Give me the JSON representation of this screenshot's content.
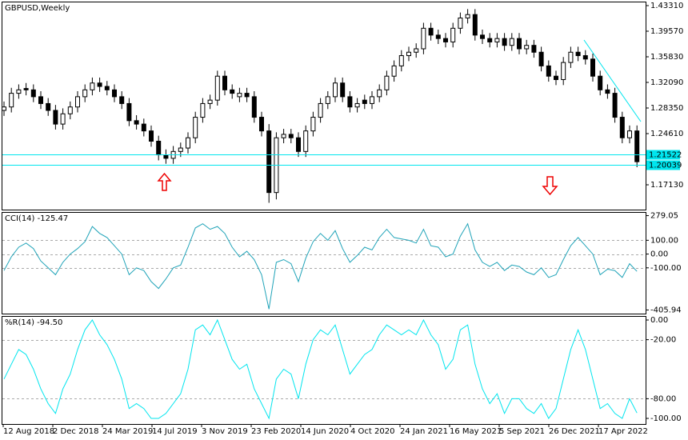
{
  "chart_data": [
    {
      "type": "candlestick",
      "title": "GBPUSD,Weekly",
      "color": "#000000",
      "candles": [
        [
          1.28,
          1.293,
          1.272,
          1.285
        ],
        [
          1.285,
          1.313,
          1.277,
          1.305
        ],
        [
          1.305,
          1.318,
          1.297,
          1.31
        ],
        [
          1.312,
          1.32,
          1.302,
          1.31
        ],
        [
          1.31,
          1.318,
          1.292,
          1.3
        ],
        [
          1.3,
          1.308,
          1.282,
          1.29
        ],
        [
          1.29,
          1.298,
          1.272,
          1.28
        ],
        [
          1.28,
          1.288,
          1.252,
          1.26
        ],
        [
          1.26,
          1.283,
          1.252,
          1.275
        ],
        [
          1.275,
          1.293,
          1.267,
          1.285
        ],
        [
          1.285,
          1.308,
          1.277,
          1.3
        ],
        [
          1.3,
          1.318,
          1.292,
          1.31
        ],
        [
          1.31,
          1.328,
          1.302,
          1.32
        ],
        [
          1.32,
          1.328,
          1.307,
          1.315
        ],
        [
          1.315,
          1.323,
          1.302,
          1.31
        ],
        [
          1.31,
          1.318,
          1.292,
          1.3
        ],
        [
          1.3,
          1.308,
          1.282,
          1.29
        ],
        [
          1.29,
          1.298,
          1.257,
          1.265
        ],
        [
          1.265,
          1.273,
          1.252,
          1.26
        ],
        [
          1.26,
          1.268,
          1.242,
          1.25
        ],
        [
          1.25,
          1.258,
          1.227,
          1.235
        ],
        [
          1.235,
          1.243,
          1.207,
          1.215
        ],
        [
          1.215,
          1.223,
          1.202,
          1.21
        ],
        [
          1.21,
          1.228,
          1.202,
          1.22
        ],
        [
          1.22,
          1.233,
          1.212,
          1.225
        ],
        [
          1.225,
          1.248,
          1.217,
          1.24
        ],
        [
          1.24,
          1.278,
          1.232,
          1.27
        ],
        [
          1.27,
          1.298,
          1.262,
          1.29
        ],
        [
          1.29,
          1.303,
          1.282,
          1.295
        ],
        [
          1.295,
          1.338,
          1.287,
          1.33
        ],
        [
          1.33,
          1.338,
          1.302,
          1.31
        ],
        [
          1.31,
          1.318,
          1.297,
          1.305
        ],
        [
          1.3,
          1.313,
          1.292,
          1.305
        ],
        [
          1.305,
          1.313,
          1.292,
          1.3
        ],
        [
          1.3,
          1.308,
          1.262,
          1.27
        ],
        [
          1.27,
          1.278,
          1.242,
          1.25
        ],
        [
          1.25,
          1.26,
          1.145,
          1.16
        ],
        [
          1.16,
          1.248,
          1.15,
          1.24
        ],
        [
          1.24,
          1.253,
          1.232,
          1.245
        ],
        [
          1.245,
          1.253,
          1.232,
          1.24
        ],
        [
          1.24,
          1.248,
          1.212,
          1.22
        ],
        [
          1.22,
          1.258,
          1.212,
          1.25
        ],
        [
          1.25,
          1.278,
          1.242,
          1.27
        ],
        [
          1.27,
          1.298,
          1.262,
          1.29
        ],
        [
          1.29,
          1.308,
          1.282,
          1.3
        ],
        [
          1.3,
          1.328,
          1.292,
          1.32
        ],
        [
          1.32,
          1.328,
          1.292,
          1.3
        ],
        [
          1.3,
          1.308,
          1.277,
          1.285
        ],
        [
          1.285,
          1.298,
          1.277,
          1.29
        ],
        [
          1.295,
          1.303,
          1.282,
          1.29
        ],
        [
          1.29,
          1.308,
          1.282,
          1.3
        ],
        [
          1.3,
          1.318,
          1.292,
          1.31
        ],
        [
          1.31,
          1.338,
          1.302,
          1.33
        ],
        [
          1.33,
          1.353,
          1.322,
          1.345
        ],
        [
          1.345,
          1.368,
          1.337,
          1.36
        ],
        [
          1.36,
          1.373,
          1.352,
          1.365
        ],
        [
          1.365,
          1.378,
          1.357,
          1.37
        ],
        [
          1.37,
          1.408,
          1.362,
          1.4
        ],
        [
          1.4,
          1.408,
          1.382,
          1.39
        ],
        [
          1.39,
          1.398,
          1.377,
          1.385
        ],
        [
          1.385,
          1.393,
          1.372,
          1.38
        ],
        [
          1.38,
          1.408,
          1.372,
          1.4
        ],
        [
          1.4,
          1.423,
          1.392,
          1.415
        ],
        [
          1.415,
          1.428,
          1.407,
          1.42
        ],
        [
          1.42,
          1.428,
          1.382,
          1.39
        ],
        [
          1.39,
          1.398,
          1.377,
          1.385
        ],
        [
          1.385,
          1.393,
          1.372,
          1.38
        ],
        [
          1.38,
          1.393,
          1.372,
          1.385
        ],
        [
          1.385,
          1.393,
          1.367,
          1.375
        ],
        [
          1.375,
          1.393,
          1.367,
          1.385
        ],
        [
          1.385,
          1.393,
          1.362,
          1.37
        ],
        [
          1.37,
          1.383,
          1.362,
          1.375
        ],
        [
          1.375,
          1.383,
          1.357,
          1.365
        ],
        [
          1.365,
          1.373,
          1.337,
          1.345
        ],
        [
          1.345,
          1.353,
          1.322,
          1.33
        ],
        [
          1.33,
          1.338,
          1.317,
          1.325
        ],
        [
          1.325,
          1.358,
          1.317,
          1.35
        ],
        [
          1.35,
          1.373,
          1.342,
          1.365
        ],
        [
          1.365,
          1.373,
          1.352,
          1.36
        ],
        [
          1.36,
          1.368,
          1.347,
          1.355
        ],
        [
          1.355,
          1.363,
          1.322,
          1.33
        ],
        [
          1.33,
          1.338,
          1.302,
          1.31
        ],
        [
          1.31,
          1.318,
          1.297,
          1.305
        ],
        [
          1.305,
          1.313,
          1.262,
          1.27
        ],
        [
          1.27,
          1.278,
          1.232,
          1.24
        ],
        [
          1.24,
          1.258,
          1.232,
          1.25
        ],
        [
          1.25,
          1.258,
          1.197,
          1.205
        ]
      ],
      "ylim": [
        1.13507,
        1.43894
      ],
      "yticks": [
        {
          "value": 1.4331,
          "label": "1.43310"
        },
        {
          "value": 1.3957,
          "label": "1.39570"
        },
        {
          "value": 1.3583,
          "label": "1.35830"
        },
        {
          "value": 1.3209,
          "label": "1.32090"
        },
        {
          "value": 1.2835,
          "label": "1.28350"
        },
        {
          "value": 1.2461,
          "label": "1.24610"
        },
        {
          "value": 1.1713,
          "label": "1.17130"
        }
      ],
      "hlines": [
        {
          "value": 1.21522,
          "label": "1.21522"
        },
        {
          "value": 1.20039,
          "label": "1.20039"
        }
      ],
      "hline_color": "#00e5ee"
    },
    {
      "type": "line",
      "title": "CCI(14) -125.47",
      "color": "#1fa3b8",
      "values": [
        -120,
        -20,
        50,
        80,
        40,
        -50,
        -100,
        -150,
        -60,
        0,
        40,
        90,
        200,
        150,
        120,
        60,
        0,
        -150,
        -100,
        -120,
        -200,
        -250,
        -180,
        -100,
        -80,
        50,
        190,
        220,
        180,
        200,
        150,
        50,
        -20,
        20,
        -40,
        -150,
        -400,
        -60,
        -40,
        -70,
        -200,
        -30,
        90,
        150,
        100,
        170,
        40,
        -60,
        -10,
        50,
        30,
        120,
        180,
        120,
        110,
        100,
        80,
        180,
        60,
        50,
        -20,
        0,
        130,
        220,
        30,
        -60,
        -90,
        -60,
        -120,
        -80,
        -90,
        -130,
        -150,
        -100,
        -170,
        -150,
        -40,
        60,
        120,
        60,
        0,
        -150,
        -110,
        -120,
        -170,
        -70,
        -125.47
      ],
      "ylim": [
        -432.3,
        305.4
      ],
      "yticks": [
        {
          "value": 279.05,
          "label": "279.05"
        },
        {
          "value": 100,
          "label": "100.00"
        },
        {
          "value": 0,
          "label": "0.00"
        },
        {
          "value": -100,
          "label": "-100.00"
        },
        {
          "value": -405.94,
          "label": "-405.94"
        }
      ],
      "grid_values": [
        100,
        0,
        -100
      ]
    },
    {
      "type": "line",
      "title": "%R(14) -94.50",
      "color": "#00e5ee",
      "values": [
        -60,
        -45,
        -30,
        -35,
        -50,
        -70,
        -85,
        -95,
        -70,
        -55,
        -30,
        -10,
        0,
        -15,
        -25,
        -40,
        -60,
        -90,
        -85,
        -90,
        -100,
        -100,
        -95,
        -85,
        -75,
        -50,
        -10,
        -5,
        -15,
        0,
        -20,
        -40,
        -50,
        -45,
        -70,
        -85,
        -100,
        -60,
        -50,
        -55,
        -80,
        -45,
        -20,
        -10,
        -15,
        -5,
        -30,
        -55,
        -45,
        -35,
        -30,
        -15,
        -5,
        -10,
        -15,
        -10,
        -15,
        0,
        -15,
        -25,
        -50,
        -40,
        -10,
        -5,
        -45,
        -70,
        -85,
        -75,
        -95,
        -80,
        -80,
        -90,
        -95,
        -85,
        -100,
        -90,
        -60,
        -30,
        -10,
        -30,
        -60,
        -90,
        -85,
        -95,
        -100,
        -80,
        -94.5
      ],
      "ylim": [
        -105.7,
        4.07
      ],
      "yticks": [
        {
          "value": 0,
          "label": "0.00"
        },
        {
          "value": -20,
          "label": "-20.00"
        },
        {
          "value": -80,
          "label": "-80.00"
        },
        {
          "value": -100,
          "label": "-100.00"
        }
      ],
      "grid_values": [
        -20,
        -80
      ]
    }
  ],
  "time_axis": {
    "labels": [
      "12 Aug 2018",
      "2 Dec 2018",
      "24 Mar 2019",
      "14 Jul 2019",
      "3 Nov 2019",
      "23 Feb 2020",
      "14 Jun 2020",
      "4 Oct 2020",
      "24 Jan 2021",
      "16 May 2021",
      "5 Sep 2021",
      "26 Dec 2021",
      "17 Apr 2022"
    ]
  }
}
